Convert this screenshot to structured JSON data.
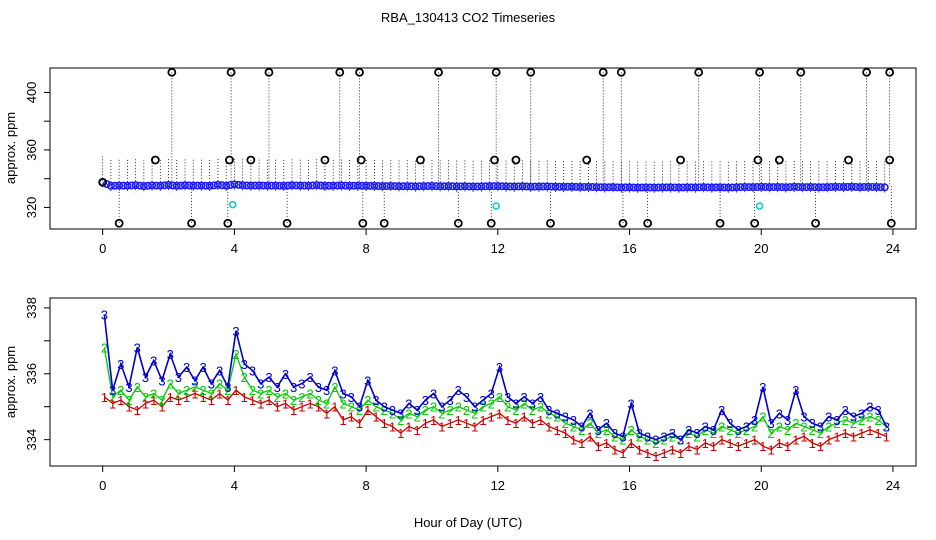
{
  "chart_data": {
    "title": "RBA_130413  CO2 Timeseries",
    "xlabel": "Hour of Day (UTC)",
    "colors": {
      "baseline": "#000000",
      "flag": "#000000",
      "mean": "#1a1aff",
      "low": "#00cccc",
      "series1": "#cc0000",
      "series2": "#00cc00",
      "series3": "#0000cc"
    },
    "panels": [
      {
        "id": "top",
        "type": "scatter",
        "ylabel": "approx. ppm",
        "xlim": [
          -1.6,
          24.7
        ],
        "ylim": [
          305,
          417
        ],
        "xticks": [
          "0",
          "4",
          "8",
          "12",
          "16",
          "20",
          "24"
        ],
        "yticks": [
          "320",
          "360",
          "400"
        ],
        "baseline_series": {
          "x": [
            0.0,
            0.25,
            0.5,
            0.75,
            1.0,
            1.25,
            1.5,
            1.75,
            2.0,
            2.25,
            2.5,
            2.75,
            3.0,
            3.25,
            3.5,
            3.75,
            4.0,
            4.25,
            4.5,
            4.75,
            5.0,
            5.25,
            5.5,
            5.75,
            6.0,
            6.25,
            6.5,
            6.75,
            7.0,
            7.25,
            7.5,
            7.75,
            8.0,
            8.25,
            8.5,
            8.75,
            9.0,
            9.25,
            9.5,
            9.75,
            10.0,
            10.25,
            10.5,
            10.75,
            11.0,
            11.25,
            11.5,
            11.75,
            12.0,
            12.25,
            12.5,
            12.75,
            13.0,
            13.25,
            13.5,
            13.75,
            14.0,
            14.25,
            14.5,
            14.75,
            15.0,
            15.25,
            15.5,
            15.75,
            16.0,
            16.25,
            16.5,
            16.75,
            17.0,
            17.25,
            17.5,
            17.75,
            18.0,
            18.25,
            18.5,
            18.75,
            19.0,
            19.25,
            19.5,
            19.75,
            20.0,
            20.25,
            20.5,
            20.75,
            21.0,
            21.25,
            21.5,
            21.75,
            22.0,
            22.25,
            22.5,
            22.75,
            23.0,
            23.25,
            23.5,
            23.75
          ],
          "y": [
            337.5,
            335.0,
            335.2,
            335.1,
            335.5,
            334.8,
            335.3,
            335.1,
            335.6,
            335.0,
            335.4,
            335.2,
            335.2,
            335.0,
            335.7,
            335.1,
            336.0,
            335.4,
            335.2,
            335.3,
            335.1,
            335.2,
            335.0,
            335.4,
            335.2,
            335.1,
            335.5,
            335.0,
            335.1,
            335.3,
            335.0,
            335.1,
            335.0,
            335.0,
            334.8,
            334.9,
            334.7,
            334.8,
            334.6,
            334.8,
            334.9,
            334.7,
            334.8,
            334.6,
            334.7,
            334.5,
            334.6,
            334.8,
            334.8,
            334.6,
            334.5,
            334.7,
            334.4,
            334.5,
            334.6,
            334.4,
            334.3,
            334.4,
            334.2,
            334.3,
            334.1,
            334.0,
            334.1,
            333.9,
            334.0,
            333.8,
            333.9,
            333.8,
            333.9,
            334.0,
            333.8,
            334.0,
            333.9,
            334.1,
            333.9,
            334.0,
            333.8,
            334.0,
            334.2,
            334.1,
            334.3,
            334.1,
            334.2,
            334.0,
            334.3,
            334.1,
            334.2,
            334.0,
            334.1,
            334.3,
            334.2,
            334.4,
            334.1,
            334.3,
            334.2,
            334.0
          ]
        },
        "high_flags": {
          "x": [
            2.1,
            3.9,
            5.05,
            7.2,
            7.8,
            10.2,
            11.95,
            13.0,
            15.2,
            15.75,
            18.1,
            19.95,
            21.2,
            23.2,
            23.9
          ],
          "y": [
            414,
            414,
            414,
            414,
            414,
            414,
            414,
            414,
            414,
            414,
            414,
            414,
            414,
            414,
            414
          ]
        },
        "mid_flags": {
          "x": [
            1.6,
            3.85,
            4.5,
            6.75,
            7.85,
            9.65,
            11.9,
            12.55,
            14.7,
            17.55,
            19.9,
            20.55,
            22.65,
            23.9
          ],
          "y": [
            353,
            353,
            353,
            353,
            353,
            353,
            353,
            353,
            353,
            353,
            353,
            353,
            353,
            353
          ]
        },
        "low_flags": {
          "x": [
            0.5,
            2.7,
            3.8,
            5.6,
            7.9,
            8.55,
            10.8,
            11.8,
            13.6,
            15.8,
            16.55,
            18.75,
            19.8,
            21.65,
            23.95
          ],
          "y": [
            309,
            309,
            309,
            309,
            309,
            309,
            309,
            309,
            309,
            309,
            309,
            309,
            309,
            309,
            309
          ]
        },
        "cyan_points": {
          "x": [
            3.95,
            11.95,
            19.95
          ],
          "y": [
            322,
            321,
            321
          ]
        }
      },
      {
        "id": "bottom",
        "type": "line",
        "ylabel": "approx. ppm",
        "xlim": [
          -1.6,
          24.7
        ],
        "ylim": [
          333.2,
          338.3
        ],
        "xticks": [
          "0",
          "4",
          "8",
          "12",
          "16",
          "20",
          "24"
        ],
        "yticks": [
          "334",
          "336",
          "338"
        ],
        "series": [
          {
            "name": "1",
            "marker": "1",
            "x": [
              0.05,
              0.3,
              0.55,
              0.8,
              1.05,
              1.3,
              1.55,
              1.8,
              2.05,
              2.3,
              2.55,
              2.8,
              3.05,
              3.3,
              3.55,
              3.8,
              4.05,
              4.3,
              4.55,
              4.8,
              5.05,
              5.3,
              5.55,
              5.8,
              6.05,
              6.3,
              6.55,
              6.8,
              7.05,
              7.3,
              7.55,
              7.8,
              8.05,
              8.3,
              8.55,
              8.8,
              9.05,
              9.3,
              9.55,
              9.8,
              10.05,
              10.3,
              10.55,
              10.8,
              11.05,
              11.3,
              11.55,
              11.8,
              12.05,
              12.3,
              12.55,
              12.8,
              13.05,
              13.3,
              13.55,
              13.8,
              14.05,
              14.3,
              14.55,
              14.8,
              15.05,
              15.3,
              15.55,
              15.8,
              16.05,
              16.3,
              16.55,
              16.8,
              17.05,
              17.3,
              17.55,
              17.8,
              18.05,
              18.3,
              18.55,
              18.8,
              19.05,
              19.3,
              19.55,
              19.8,
              20.05,
              20.3,
              20.55,
              20.8,
              21.05,
              21.3,
              21.55,
              21.8,
              22.05,
              22.3,
              22.55,
              22.8,
              23.05,
              23.3,
              23.55,
              23.8
            ],
            "y": [
              335.3,
              335.1,
              335.2,
              335.0,
              334.9,
              335.1,
              335.2,
              335.0,
              335.3,
              335.2,
              335.3,
              335.4,
              335.3,
              335.2,
              335.4,
              335.2,
              335.5,
              335.3,
              335.2,
              335.1,
              335.2,
              335.0,
              335.1,
              334.9,
              335.0,
              335.1,
              335.0,
              334.8,
              335.0,
              334.6,
              334.7,
              334.5,
              334.9,
              334.7,
              334.5,
              334.4,
              334.2,
              334.4,
              334.3,
              334.5,
              334.6,
              334.4,
              334.5,
              334.6,
              334.5,
              334.4,
              334.6,
              334.7,
              334.8,
              334.6,
              334.5,
              334.7,
              334.5,
              334.6,
              334.4,
              334.3,
              334.2,
              334.0,
              333.9,
              334.1,
              333.8,
              333.9,
              333.7,
              333.6,
              333.9,
              333.7,
              333.6,
              333.5,
              333.6,
              333.7,
              333.6,
              333.8,
              333.7,
              333.9,
              333.8,
              334.0,
              333.9,
              333.8,
              333.9,
              334.0,
              333.8,
              333.7,
              333.9,
              333.8,
              334.0,
              334.1,
              333.9,
              333.8,
              334.0,
              334.1,
              334.2,
              334.1,
              334.2,
              334.3,
              334.2,
              334.1
            ]
          },
          {
            "name": "2",
            "marker": "2",
            "x": [
              0.05,
              0.3,
              0.55,
              0.8,
              1.05,
              1.3,
              1.55,
              1.8,
              2.05,
              2.3,
              2.55,
              2.8,
              3.05,
              3.3,
              3.55,
              3.8,
              4.05,
              4.3,
              4.55,
              4.8,
              5.05,
              5.3,
              5.55,
              5.8,
              6.05,
              6.3,
              6.55,
              6.8,
              7.05,
              7.3,
              7.55,
              7.8,
              8.05,
              8.3,
              8.55,
              8.8,
              9.05,
              9.3,
              9.55,
              9.8,
              10.05,
              10.3,
              10.55,
              10.8,
              11.05,
              11.3,
              11.55,
              11.8,
              12.05,
              12.3,
              12.55,
              12.8,
              13.05,
              13.3,
              13.55,
              13.8,
              14.05,
              14.3,
              14.55,
              14.8,
              15.05,
              15.3,
              15.55,
              15.8,
              16.05,
              16.3,
              16.55,
              16.8,
              17.05,
              17.3,
              17.55,
              17.8,
              18.05,
              18.3,
              18.55,
              18.8,
              19.05,
              19.3,
              19.55,
              19.8,
              20.05,
              20.3,
              20.55,
              20.8,
              21.05,
              21.3,
              21.55,
              21.8,
              22.05,
              22.3,
              22.55,
              22.8,
              23.05,
              23.3,
              23.55,
              23.8
            ],
            "y": [
              336.8,
              335.3,
              335.5,
              335.2,
              335.6,
              335.3,
              335.4,
              335.2,
              335.7,
              335.4,
              335.5,
              335.6,
              335.5,
              335.4,
              335.7,
              335.5,
              336.6,
              335.9,
              335.5,
              335.4,
              335.5,
              335.3,
              335.4,
              335.2,
              335.3,
              335.4,
              335.2,
              335.1,
              335.6,
              335.1,
              335.0,
              334.9,
              335.2,
              335.0,
              334.9,
              334.8,
              334.6,
              334.8,
              334.7,
              334.9,
              335.0,
              334.8,
              334.9,
              335.0,
              334.9,
              334.8,
              335.0,
              335.1,
              335.3,
              335.0,
              334.9,
              335.1,
              334.9,
              335.0,
              334.8,
              334.7,
              334.5,
              334.4,
              334.3,
              334.5,
              334.2,
              334.3,
              334.1,
              334.0,
              334.3,
              334.1,
              334.0,
              333.9,
              334.0,
              334.1,
              334.0,
              334.2,
              334.1,
              334.3,
              334.2,
              334.4,
              334.3,
              334.2,
              334.3,
              334.4,
              334.7,
              334.2,
              334.4,
              334.3,
              334.5,
              334.4,
              334.3,
              334.2,
              334.4,
              334.5,
              334.6,
              334.5,
              334.6,
              334.7,
              334.6,
              334.4
            ]
          },
          {
            "name": "3",
            "marker": "3",
            "x": [
              0.05,
              0.3,
              0.55,
              0.8,
              1.05,
              1.3,
              1.55,
              1.8,
              2.05,
              2.3,
              2.55,
              2.8,
              3.05,
              3.3,
              3.55,
              3.8,
              4.05,
              4.3,
              4.55,
              4.8,
              5.05,
              5.3,
              5.55,
              5.8,
              6.05,
              6.3,
              6.55,
              6.8,
              7.05,
              7.3,
              7.55,
              7.8,
              8.05,
              8.3,
              8.55,
              8.8,
              9.05,
              9.3,
              9.55,
              9.8,
              10.05,
              10.3,
              10.55,
              10.8,
              11.05,
              11.3,
              11.55,
              11.8,
              12.05,
              12.3,
              12.55,
              12.8,
              13.05,
              13.3,
              13.55,
              13.8,
              14.05,
              14.3,
              14.55,
              14.8,
              15.05,
              15.3,
              15.55,
              15.8,
              16.05,
              16.3,
              16.55,
              16.8,
              17.05,
              17.3,
              17.55,
              17.8,
              18.05,
              18.3,
              18.55,
              18.8,
              19.05,
              19.3,
              19.55,
              19.8,
              20.05,
              20.3,
              20.55,
              20.8,
              21.05,
              21.3,
              21.55,
              21.8,
              22.05,
              22.3,
              22.55,
              22.8,
              23.05,
              23.3,
              23.55,
              23.8
            ],
            "y": [
              337.8,
              335.5,
              336.3,
              335.6,
              336.8,
              335.9,
              336.4,
              335.8,
              336.6,
              335.9,
              336.2,
              335.8,
              336.2,
              335.7,
              336.1,
              335.6,
              337.3,
              336.3,
              336.1,
              335.7,
              335.9,
              335.6,
              336.0,
              335.6,
              335.7,
              335.9,
              335.6,
              335.5,
              336.1,
              335.4,
              335.3,
              335.0,
              335.8,
              335.2,
              335.0,
              334.9,
              334.8,
              335.1,
              334.9,
              335.2,
              335.4,
              335.0,
              335.2,
              335.5,
              335.3,
              335.0,
              335.2,
              335.4,
              336.2,
              335.3,
              335.1,
              335.3,
              335.1,
              335.3,
              334.9,
              334.8,
              334.7,
              334.6,
              334.4,
              334.8,
              334.3,
              334.5,
              334.2,
              334.1,
              335.1,
              334.2,
              334.1,
              334.0,
              334.1,
              334.2,
              334.0,
              334.3,
              334.2,
              334.4,
              334.3,
              334.9,
              334.5,
              334.3,
              334.4,
              334.6,
              335.6,
              334.5,
              334.8,
              334.6,
              335.5,
              334.7,
              334.5,
              334.4,
              334.7,
              334.6,
              334.9,
              334.7,
              334.8,
              335.0,
              334.9,
              334.4
            ]
          }
        ]
      }
    ]
  }
}
